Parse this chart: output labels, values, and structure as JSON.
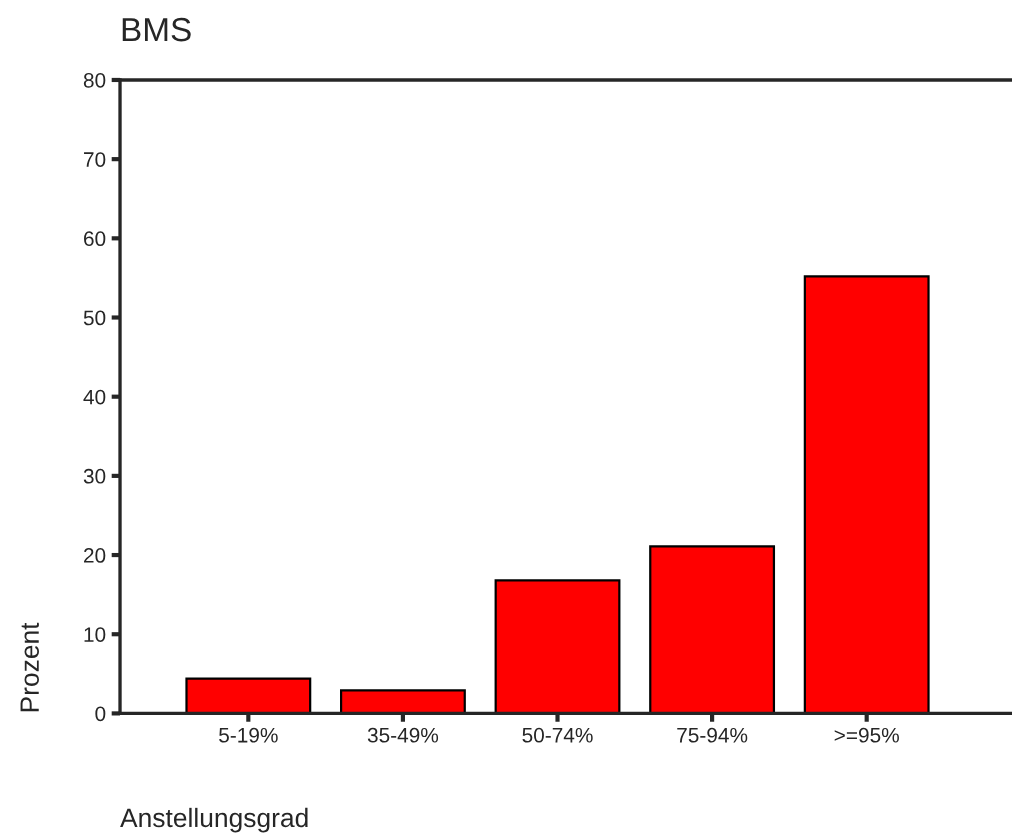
{
  "chart_data": {
    "type": "bar",
    "title": "BMS",
    "xlabel": "Anstellungsgrad",
    "ylabel": "Prozent",
    "categories": [
      "5-19%",
      "35-49%",
      "50-74%",
      "75-94%",
      ">=95%"
    ],
    "values": [
      4.4,
      2.9,
      16.8,
      21.1,
      55.2
    ],
    "color": "#ff0000",
    "ylim": [
      0,
      80
    ],
    "yticks": [
      0,
      10,
      20,
      30,
      40,
      50,
      60,
      70,
      80
    ],
    "grid": false,
    "legend": false
  }
}
